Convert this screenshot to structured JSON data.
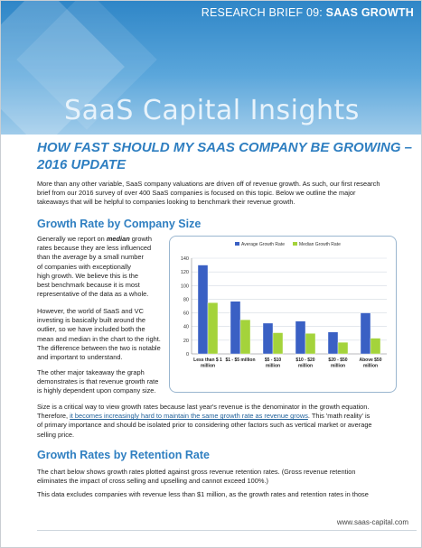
{
  "header": {
    "brief_prefix": "RESEARCH BRIEF 09: ",
    "brief_topic": "SAAS GROWTH",
    "brand": "SaaS Capital Insights"
  },
  "title_line1": "HOW FAST SHOULD MY SAAS COMPANY BE GROWING –",
  "title_line2": "2016 UPDATE",
  "intro": [
    "More than any other variable, SaaS company valuations are driven off of revenue growth. As such, our first research",
    "brief from our 2016 survey of over 400 SaaS companies is focused on this topic.  Below we outline the major",
    "takeaways that will be helpful to companies looking to benchmark their revenue growth."
  ],
  "section1": {
    "heading": "Growth Rate by Company Size",
    "left_lines": [
      {
        "pre": "Generally we report on ",
        "em": "median",
        "post": " growth"
      },
      {
        "pre": "rates because they are less influenced",
        "em": "",
        "post": ""
      },
      {
        "pre": "than the ",
        "em": "average",
        "post": " by a small number"
      },
      {
        "pre": "of companies with exceptionally",
        "em": "",
        "post": ""
      },
      {
        "pre": "high growth.  We believe this is the",
        "em": "",
        "post": ""
      },
      {
        "pre": "best benchmark because it is most",
        "em": "",
        "post": ""
      },
      {
        "pre": "representative of the data as a whole.",
        "em": "",
        "post": ""
      }
    ],
    "para2": [
      "However, the world of SaaS and VC",
      "investing is basically built around the",
      "outlier, so we have included both the",
      "mean and median in the chart to the right.",
      "The difference between the two is notable",
      "and important to understand."
    ],
    "para3": [
      "The other major takeaway the graph",
      "demonstrates is that revenue growth rate",
      "is highly dependent upon company size."
    ],
    "full1": "Size is a critical way to view growth rates because last year's revenue is the denominator in the growth equation.",
    "full2_pre": "Therefore, ",
    "full2_link": "it becomes increasingly hard to maintain the same growth rate as revenue grows",
    "full2_post": ".  This 'math reality' is",
    "full3": "of primary importance and should be isolated prior to considering other factors such as vertical market or average",
    "full4": "selling price."
  },
  "section2": {
    "heading": "Growth Rates by Retention Rate",
    "p1a": "The chart below shows growth rates plotted against gross revenue retention rates. (Gross revenue retention",
    "p1b": "eliminates the impact of cross selling and upselling and cannot exceed 100%.)",
    "p2": "This data excludes companies with revenue less than $1 million, as the growth rates and retention rates in those"
  },
  "footer": {
    "url": "www.saas-capital.com"
  },
  "chart_data": {
    "type": "bar",
    "categories": [
      [
        "Less than $ 1",
        "million"
      ],
      [
        "$1 - $5 million"
      ],
      [
        "$5 - $10",
        "million"
      ],
      [
        "$10 - $20",
        "million"
      ],
      [
        "$20 - $50",
        "million"
      ],
      [
        "Above $50",
        "million"
      ]
    ],
    "series": [
      {
        "name": "Average Growth Rate",
        "values": [
          130,
          77,
          45,
          48,
          32,
          60
        ]
      },
      {
        "name": "Median Growth Rate",
        "values": [
          75,
          50,
          31,
          30,
          17,
          23
        ]
      }
    ],
    "ylim": [
      0,
      140
    ],
    "yticks": [
      "0",
      "20",
      "40",
      "60",
      "80",
      "100",
      "120",
      "140"
    ],
    "grid": true,
    "legend": "top",
    "colors": {
      "Average Growth Rate": "#3a60c4",
      "Median Growth Rate": "#a4d33b"
    }
  },
  "colors": {
    "accent": "#2f7fc1",
    "band": "#3d8fcf"
  }
}
